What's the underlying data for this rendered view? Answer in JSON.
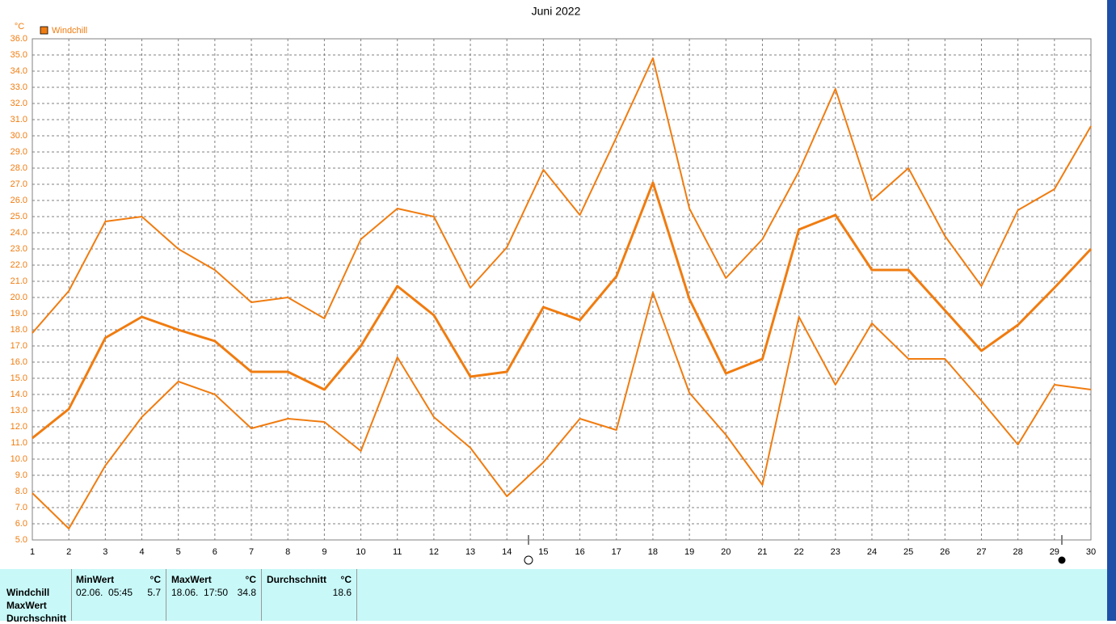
{
  "chart_data": {
    "type": "line",
    "title": "Juni 2022",
    "y_unit": "°C",
    "x": [
      1,
      2,
      3,
      4,
      5,
      6,
      7,
      8,
      9,
      10,
      11,
      12,
      13,
      14,
      15,
      16,
      17,
      18,
      19,
      20,
      21,
      22,
      23,
      24,
      25,
      26,
      27,
      28,
      29,
      30
    ],
    "xlim": [
      1,
      30
    ],
    "xticks": [
      1,
      2,
      3,
      4,
      5,
      6,
      7,
      8,
      9,
      10,
      11,
      12,
      13,
      14,
      15,
      16,
      17,
      18,
      19,
      20,
      21,
      22,
      23,
      24,
      25,
      26,
      27,
      28,
      29,
      30
    ],
    "ylim": [
      5,
      36
    ],
    "yticks": [
      {
        "value": 5,
        "label": "5.0"
      },
      {
        "value": 6,
        "label": "6.0"
      },
      {
        "value": 7,
        "label": "7.0"
      },
      {
        "value": 8,
        "label": "8.0"
      },
      {
        "value": 9,
        "label": "9.0"
      },
      {
        "value": 10,
        "label": "10.0"
      },
      {
        "value": 11,
        "label": "11.0"
      },
      {
        "value": 12,
        "label": "12.0"
      },
      {
        "value": 13,
        "label": "13.0"
      },
      {
        "value": 14,
        "label": "14.0"
      },
      {
        "value": 15,
        "label": "15.0"
      },
      {
        "value": 16,
        "label": "16.0"
      },
      {
        "value": 17,
        "label": "17.0"
      },
      {
        "value": 18,
        "label": "18.0"
      },
      {
        "value": 19,
        "label": "19.0"
      },
      {
        "value": 20,
        "label": "20.0"
      },
      {
        "value": 21,
        "label": "21.0"
      },
      {
        "value": 22,
        "label": "22.0"
      },
      {
        "value": 23,
        "label": "23.0"
      },
      {
        "value": 24,
        "label": "24.0"
      },
      {
        "value": 25,
        "label": "25.0"
      },
      {
        "value": 26,
        "label": "26.0"
      },
      {
        "value": 27,
        "label": "27.0"
      },
      {
        "value": 28,
        "label": "28.0"
      },
      {
        "value": 29,
        "label": "29.0"
      },
      {
        "value": 30,
        "label": "30.0"
      },
      {
        "value": 31,
        "label": "31.0"
      },
      {
        "value": 32,
        "label": "32.0"
      },
      {
        "value": 33,
        "label": "33.0"
      },
      {
        "value": 34,
        "label": "34.0"
      },
      {
        "value": 35,
        "label": "35.0"
      },
      {
        "value": 36,
        "label": "36.0"
      }
    ],
    "grid": true,
    "series": [
      {
        "name": "Windchill",
        "color": "#f07c10",
        "values": [
          11.3,
          13.1,
          17.5,
          18.8,
          18.0,
          17.3,
          15.4,
          15.4,
          14.3,
          17.0,
          20.7,
          18.9,
          15.1,
          15.4,
          19.4,
          18.6,
          21.3,
          27.1,
          19.9,
          15.3,
          16.2,
          24.2,
          25.1,
          21.7,
          21.7,
          19.2,
          16.7,
          18.3,
          20.6,
          23.0
        ]
      },
      {
        "color": "#f07c10",
        "values": [
          17.8,
          20.4,
          24.7,
          25.0,
          23.0,
          21.7,
          19.7,
          20.0,
          18.7,
          23.6,
          25.5,
          25.0,
          20.6,
          23.1,
          27.9,
          25.1,
          29.9,
          34.8,
          25.5,
          21.2,
          23.6,
          27.8,
          32.9,
          26.0,
          28.0,
          23.8,
          20.7,
          25.4,
          26.7,
          30.6
        ]
      },
      {
        "color": "#f07c10",
        "values": [
          7.9,
          5.7,
          9.6,
          12.6,
          14.8,
          14.0,
          11.9,
          12.5,
          12.3,
          10.5,
          16.3,
          12.6,
          10.7,
          7.7,
          9.8,
          12.5,
          11.8,
          20.3,
          14.1,
          11.5,
          8.4,
          18.8,
          14.6,
          18.4,
          16.2,
          16.2,
          13.6,
          10.9,
          14.6,
          14.3
        ]
      }
    ]
  },
  "stats": {
    "row_labels": [
      "Windchill",
      "MaxWert",
      "Durchschnitt"
    ],
    "columns": [
      {
        "header": "MinWert",
        "unit": "°C",
        "time": "02.06.  05:45",
        "value": 5.7
      },
      {
        "header": "MaxWert",
        "unit": "°C",
        "time": "18.06.  17:50",
        "value": 34.8
      },
      {
        "header": "Durchschnitt",
        "unit": "°C",
        "value": 18.6
      }
    ]
  }
}
